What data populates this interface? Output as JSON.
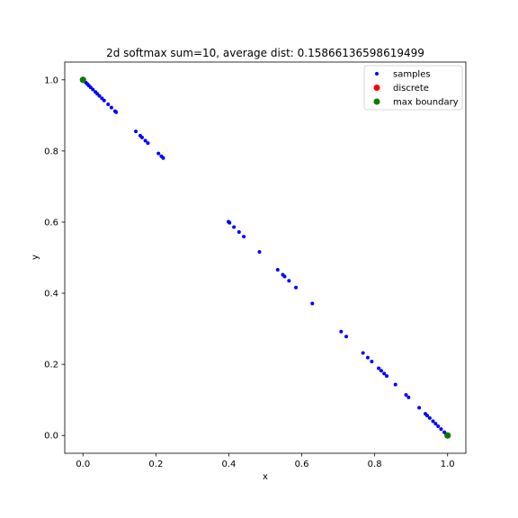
{
  "chart_data": {
    "type": "scatter",
    "title": "2d softmax sum=10, average dist: 0.15866136598619499",
    "xlabel": "x",
    "ylabel": "y",
    "xlim": [
      -0.05,
      1.05
    ],
    "ylim": [
      -0.05,
      1.05
    ],
    "xticks": [
      "0.0",
      "0.2",
      "0.4",
      "0.6",
      "0.8",
      "1.0"
    ],
    "yticks": [
      "0.0",
      "0.2",
      "0.4",
      "0.6",
      "0.8",
      "1.0"
    ],
    "grid": false,
    "legend_position": "top-right",
    "legend": [
      {
        "label": "samples",
        "color": "#0000ff"
      },
      {
        "label": "discrete",
        "color": "#ff0000"
      },
      {
        "label": "max boundary",
        "color": "#008000"
      }
    ],
    "series": [
      {
        "name": "samples",
        "color": "#0000ff",
        "points": [
          [
            0.003,
            0.997
          ],
          [
            0.008,
            0.992
          ],
          [
            0.012,
            0.988
          ],
          [
            0.016,
            0.984
          ],
          [
            0.021,
            0.979
          ],
          [
            0.027,
            0.973
          ],
          [
            0.034,
            0.966
          ],
          [
            0.039,
            0.961
          ],
          [
            0.045,
            0.955
          ],
          [
            0.052,
            0.948
          ],
          [
            0.058,
            0.942
          ],
          [
            0.069,
            0.931
          ],
          [
            0.078,
            0.922
          ],
          [
            0.088,
            0.912
          ],
          [
            0.091,
            0.909
          ],
          [
            0.145,
            0.855
          ],
          [
            0.157,
            0.843
          ],
          [
            0.162,
            0.838
          ],
          [
            0.171,
            0.829
          ],
          [
            0.178,
            0.822
          ],
          [
            0.207,
            0.793
          ],
          [
            0.215,
            0.785
          ],
          [
            0.22,
            0.78
          ],
          [
            0.399,
            0.601
          ],
          [
            0.402,
            0.598
          ],
          [
            0.414,
            0.586
          ],
          [
            0.428,
            0.572
          ],
          [
            0.441,
            0.559
          ],
          [
            0.484,
            0.516
          ],
          [
            0.534,
            0.466
          ],
          [
            0.548,
            0.452
          ],
          [
            0.553,
            0.447
          ],
          [
            0.565,
            0.435
          ],
          [
            0.584,
            0.416
          ],
          [
            0.629,
            0.371
          ],
          [
            0.708,
            0.292
          ],
          [
            0.722,
            0.278
          ],
          [
            0.768,
            0.232
          ],
          [
            0.781,
            0.219
          ],
          [
            0.792,
            0.208
          ],
          [
            0.811,
            0.189
          ],
          [
            0.818,
            0.182
          ],
          [
            0.826,
            0.174
          ],
          [
            0.833,
            0.167
          ],
          [
            0.857,
            0.143
          ],
          [
            0.886,
            0.114
          ],
          [
            0.893,
            0.107
          ],
          [
            0.922,
            0.078
          ],
          [
            0.939,
            0.061
          ],
          [
            0.944,
            0.056
          ],
          [
            0.951,
            0.049
          ],
          [
            0.96,
            0.04
          ],
          [
            0.967,
            0.033
          ],
          [
            0.974,
            0.026
          ],
          [
            0.982,
            0.018
          ],
          [
            0.991,
            0.009
          ],
          [
            0.996,
            0.004
          ]
        ]
      },
      {
        "name": "discrete",
        "color": "#ff0000",
        "points": [
          [
            0.0,
            1.0
          ],
          [
            1.0,
            0.0
          ]
        ]
      },
      {
        "name": "max boundary",
        "color": "#008000",
        "points": [
          [
            0.0,
            1.0
          ],
          [
            1.0,
            0.0
          ]
        ]
      }
    ]
  }
}
